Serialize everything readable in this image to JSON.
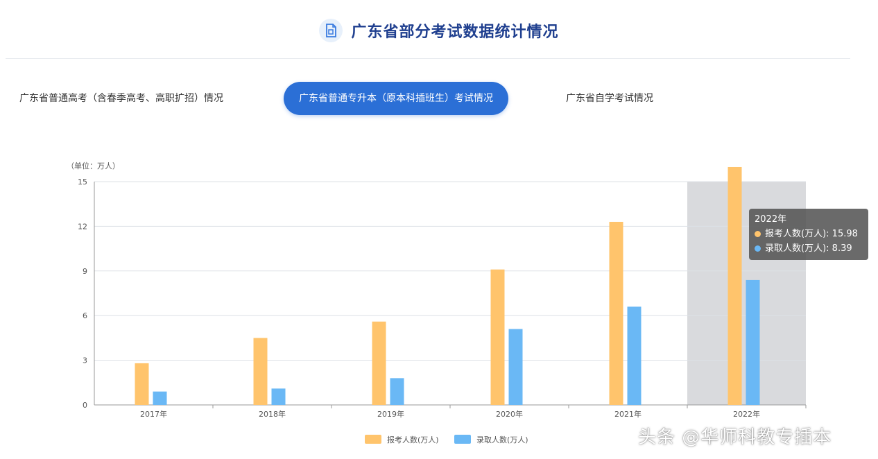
{
  "header": {
    "title": "广东省部分考试数据统计情况",
    "icon": "document-chart-icon"
  },
  "tabs": [
    {
      "label": "广东省普通高考（含春季高考、高职扩招）情况",
      "active": false
    },
    {
      "label": "广东省普通专升本（原本科插班生）考试情况",
      "active": true
    },
    {
      "label": "广东省自学考试情况",
      "active": false
    }
  ],
  "chart_data": {
    "type": "bar",
    "unit_label": "（单位：万人）",
    "categories": [
      "2017年",
      "2018年",
      "2019年",
      "2020年",
      "2021年",
      "2022年"
    ],
    "series": [
      {
        "name": "报考人数(万人)",
        "legend_label": "报考人数(万人)",
        "color": "#ffc46c",
        "values": [
          2.8,
          4.5,
          5.6,
          9.1,
          12.3,
          15.98
        ]
      },
      {
        "name": "录取人数(万人)",
        "legend_label": "录取人数(万人)",
        "color": "#6ab8f5",
        "values": [
          0.9,
          1.1,
          1.8,
          5.1,
          6.6,
          8.39
        ]
      }
    ],
    "ylim": [
      0,
      15
    ],
    "yticks": [
      "0",
      "3",
      "6",
      "9",
      "12",
      "15"
    ],
    "grid": true,
    "legend_position": "bottom",
    "highlight_category": "2022年"
  },
  "tooltip": {
    "title": "2022年",
    "rows": [
      {
        "label": "报考人数(万人)",
        "value": "15.98",
        "color": "#ffc46c"
      },
      {
        "label": "录取人数(万人)",
        "value": "8.39",
        "color": "#6ab8f5"
      }
    ]
  },
  "watermark": "头条 @华师科教专插本"
}
